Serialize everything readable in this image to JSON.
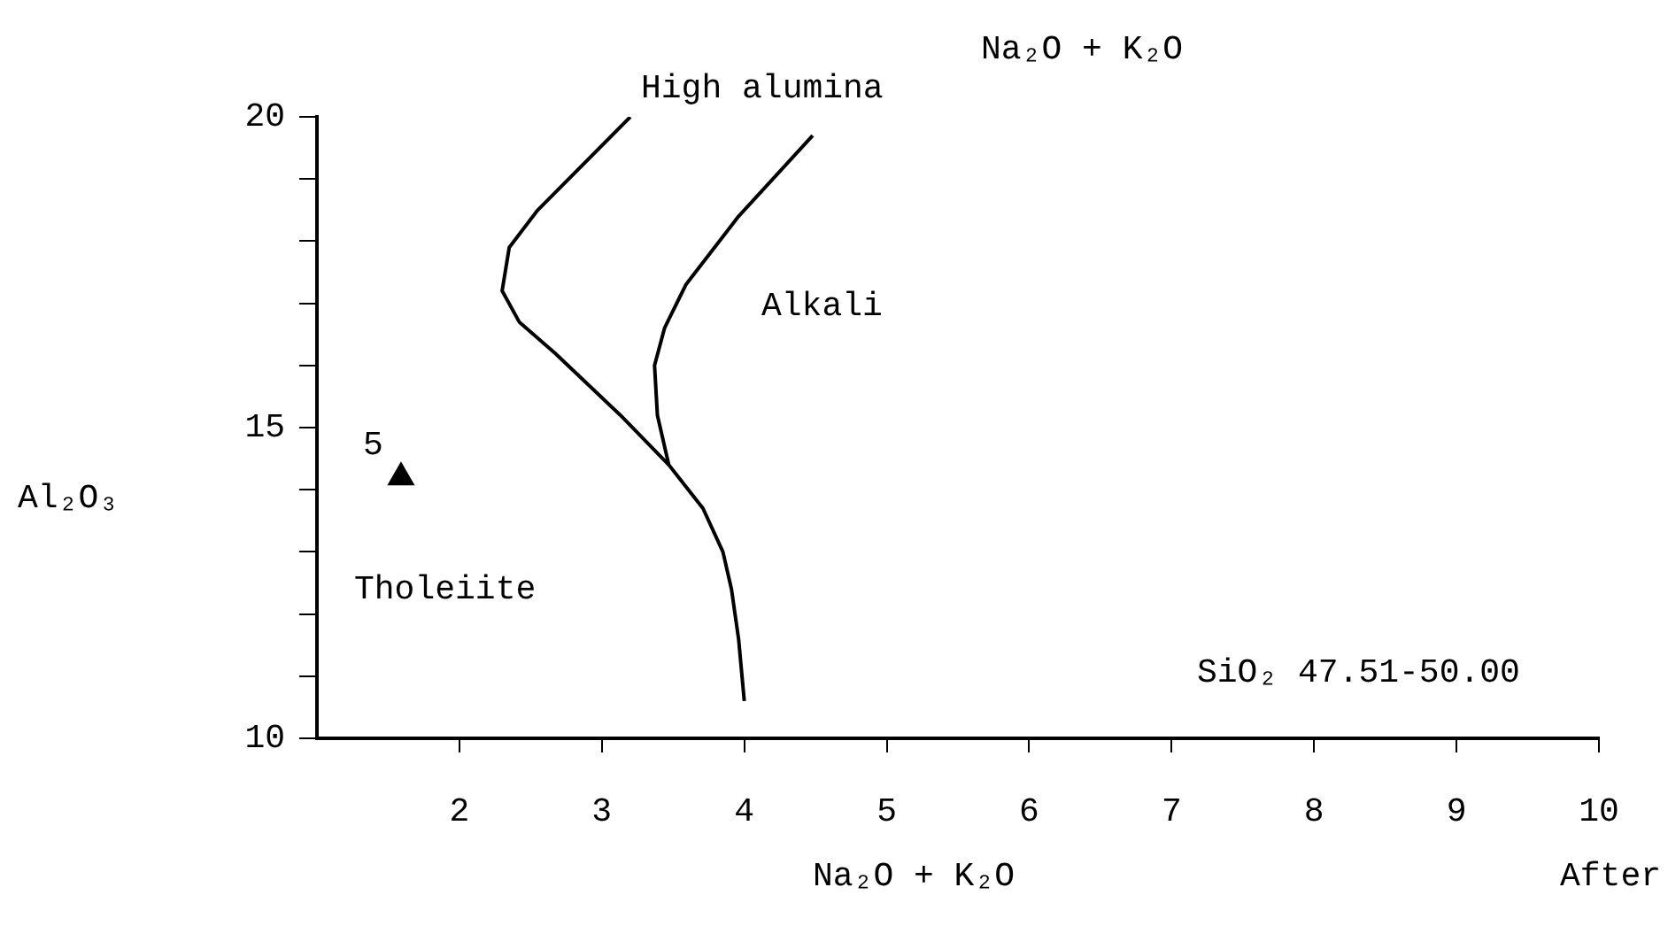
{
  "chart_data": {
    "type": "line",
    "xlabel": "Na₂O + K₂O",
    "ylabel": "Al₂O₃",
    "xlim": [
      1,
      10
    ],
    "xticks": [
      2,
      3,
      4,
      5,
      6,
      7,
      8,
      9,
      10
    ],
    "ylim": [
      10,
      20
    ],
    "yticks": [
      10,
      {
        "value": 11,
        "label": null
      },
      {
        "value": 12,
        "label": null
      },
      {
        "value": 13,
        "label": null
      },
      {
        "value": 14,
        "label": null
      },
      15,
      {
        "value": 16,
        "label": null
      },
      {
        "value": 17,
        "label": null
      },
      {
        "value": 18,
        "label": null
      },
      {
        "value": 19,
        "label": null
      },
      20
    ],
    "series": [
      {
        "color": "#000000",
        "marker": "none",
        "x": [
          3.2,
          2.55,
          2.35,
          2.3,
          2.42,
          2.67,
          3.13,
          3.47,
          3.71,
          3.85,
          3.91,
          3.96,
          4.0
        ],
        "values": [
          20,
          18.5,
          17.9,
          17.2,
          16.7,
          16.2,
          15.2,
          14.4,
          13.7,
          13.0,
          12.4,
          11.6,
          10.6
        ]
      },
      {
        "color": "#000000",
        "marker": "none",
        "x": [
          4.48,
          3.96,
          3.59,
          3.44,
          3.37,
          3.39,
          3.47
        ],
        "values": [
          19.7,
          18.4,
          17.3,
          16.6,
          16.0,
          15.2,
          14.4
        ]
      },
      {
        "type": "scatter",
        "color": "#000000",
        "marker": "triangle",
        "x": [
          1.59
        ],
        "values": [
          14.2
        ]
      }
    ],
    "annotations": [
      {
        "text": "5",
        "x": 1.59,
        "y": 14.2
      },
      "High alumina",
      "Alkali",
      "Tholeiite",
      "SiO₂ 47.51-50.00",
      "Na₂O + K₂O",
      "After"
    ]
  }
}
